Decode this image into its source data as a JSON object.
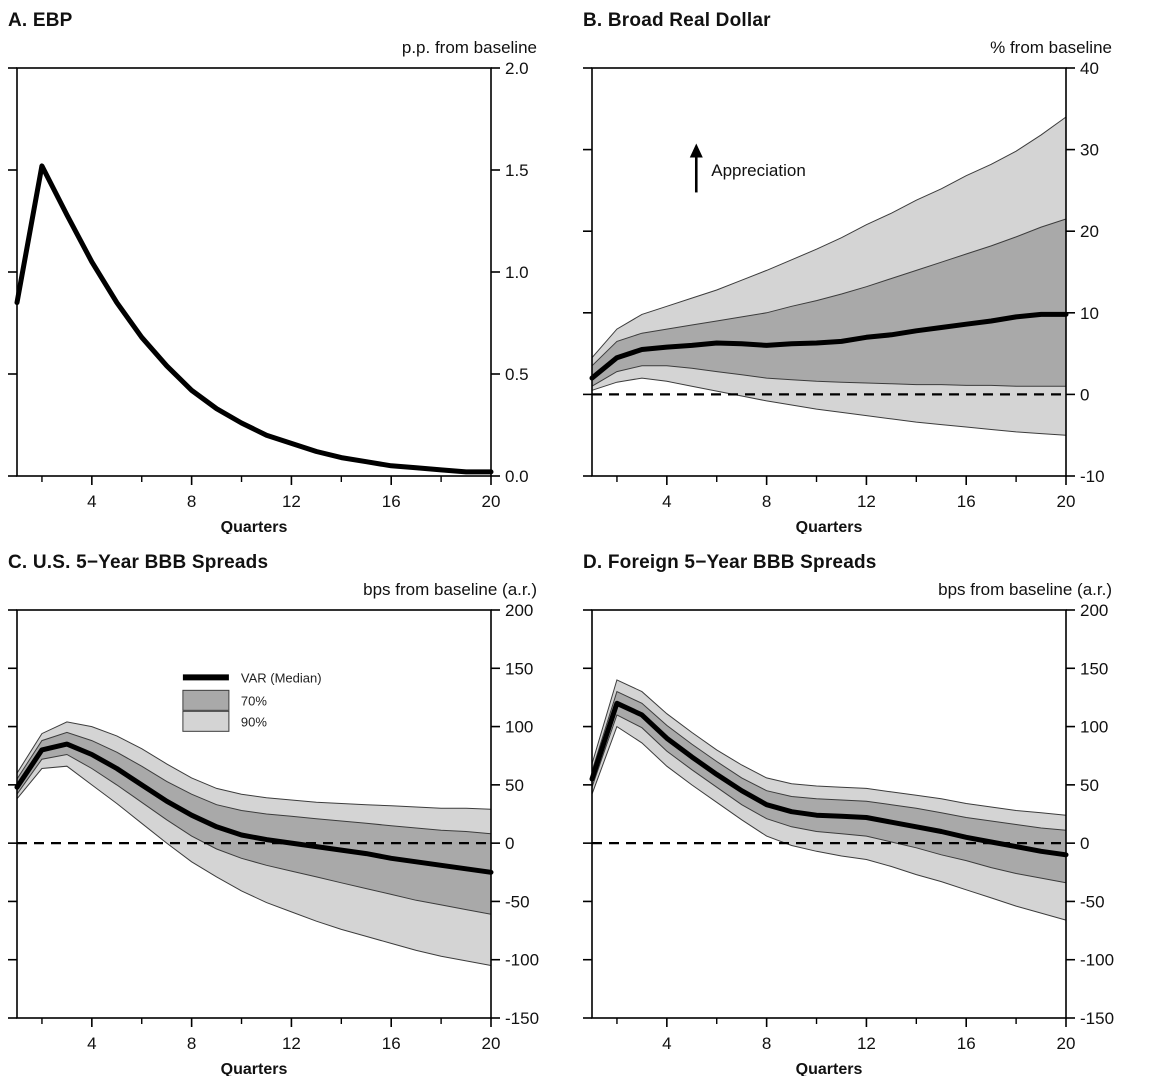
{
  "colors": {
    "median": "#000000",
    "band70": "#a9a9a9",
    "band90": "#d4d4d4",
    "frame": "#000000"
  },
  "chart_data": [
    {
      "id": "A",
      "type": "line",
      "title": "A. EBP",
      "unit_label": "p.p. from baseline",
      "xlabel": "Quarters",
      "x": [
        1,
        2,
        3,
        4,
        5,
        6,
        7,
        8,
        9,
        10,
        11,
        12,
        13,
        14,
        15,
        16,
        17,
        18,
        19,
        20
      ],
      "median": [
        0.85,
        1.52,
        1.28,
        1.05,
        0.85,
        0.68,
        0.54,
        0.42,
        0.33,
        0.26,
        0.2,
        0.16,
        0.12,
        0.09,
        0.07,
        0.05,
        0.04,
        0.03,
        0.02,
        0.02
      ],
      "ylim": [
        0,
        2
      ],
      "ytick_values": [
        0,
        0.5,
        1,
        1.5,
        2
      ],
      "ytick_labels": [
        "0.0",
        "0.5",
        "1.0",
        "1.5",
        "2.0"
      ],
      "xticks": {
        "major": [
          4,
          8,
          12,
          16,
          20
        ],
        "labels": [
          "4",
          "8",
          "12",
          "16",
          "20"
        ],
        "minor": [
          2,
          6,
          10,
          14,
          18
        ]
      },
      "zero_line": false,
      "colors": {
        "median": "#000000",
        "band70": "#a9a9a9",
        "band90": "#d4d4d4"
      }
    },
    {
      "id": "B",
      "type": "area",
      "title": "B. Broad Real Dollar",
      "unit_label": "% from baseline",
      "xlabel": "Quarters",
      "x": [
        1,
        2,
        3,
        4,
        5,
        6,
        7,
        8,
        9,
        10,
        11,
        12,
        13,
        14,
        15,
        16,
        17,
        18,
        19,
        20
      ],
      "median": [
        2.0,
        4.5,
        5.5,
        5.8,
        6.0,
        6.3,
        6.2,
        6.0,
        6.2,
        6.3,
        6.5,
        7.0,
        7.3,
        7.8,
        8.2,
        8.6,
        9.0,
        9.5,
        9.8,
        9.8
      ],
      "band70": {
        "upper": [
          3.5,
          6.5,
          7.5,
          8.0,
          8.5,
          9.0,
          9.5,
          10.0,
          10.8,
          11.5,
          12.3,
          13.2,
          14.2,
          15.2,
          16.2,
          17.2,
          18.2,
          19.3,
          20.5,
          21.5
        ],
        "lower": [
          1.0,
          2.8,
          3.5,
          3.5,
          3.2,
          2.8,
          2.4,
          2.0,
          1.8,
          1.6,
          1.5,
          1.4,
          1.3,
          1.2,
          1.2,
          1.1,
          1.1,
          1.0,
          1.0,
          1.0
        ]
      },
      "band90": {
        "upper": [
          4.5,
          8.0,
          9.8,
          10.8,
          11.8,
          12.8,
          14.0,
          15.2,
          16.5,
          17.8,
          19.2,
          20.8,
          22.2,
          23.8,
          25.2,
          26.8,
          28.2,
          29.8,
          31.8,
          34.0
        ],
        "lower": [
          0.5,
          1.5,
          2.0,
          1.6,
          1.0,
          0.4,
          -0.2,
          -0.8,
          -1.3,
          -1.8,
          -2.2,
          -2.6,
          -3.0,
          -3.4,
          -3.7,
          -4.0,
          -4.3,
          -4.6,
          -4.8,
          -5.0
        ]
      },
      "ylim": [
        -10,
        40
      ],
      "ytick_values": [
        -10,
        0,
        10,
        20,
        30,
        40
      ],
      "ytick_labels": [
        "-10",
        "0",
        "10",
        "20",
        "30",
        "40"
      ],
      "xticks": {
        "major": [
          4,
          8,
          12,
          16,
          20
        ],
        "labels": [
          "4",
          "8",
          "12",
          "16",
          "20"
        ],
        "minor": [
          2,
          6,
          10,
          14,
          18
        ]
      },
      "zero_line": true,
      "annotation": {
        "text": "Appreciation"
      },
      "colors": {
        "median": "#000000",
        "band70": "#a9a9a9",
        "band90": "#d4d4d4"
      }
    },
    {
      "id": "C",
      "type": "area",
      "title": "C. U.S. 5−Year BBB Spreads",
      "unit_label": "bps from baseline (a.r.)",
      "xlabel": "Quarters",
      "x": [
        1,
        2,
        3,
        4,
        5,
        6,
        7,
        8,
        9,
        10,
        11,
        12,
        13,
        14,
        15,
        16,
        17,
        18,
        19,
        20
      ],
      "median": [
        48,
        80,
        85,
        76,
        64,
        50,
        36,
        24,
        14,
        7,
        3,
        0,
        -3,
        -6,
        -9,
        -13,
        -16,
        -19,
        -22,
        -25
      ],
      "band70": {
        "upper": [
          55,
          88,
          95,
          88,
          78,
          66,
          53,
          42,
          33,
          28,
          25,
          23,
          21,
          19,
          17,
          15,
          13,
          11,
          10,
          8
        ],
        "lower": [
          42,
          72,
          76,
          64,
          50,
          35,
          20,
          6,
          -5,
          -13,
          -19,
          -24,
          -29,
          -34,
          -39,
          -44,
          -49,
          -53,
          -57,
          -61
        ]
      },
      "band90": {
        "upper": [
          60,
          94,
          104,
          100,
          92,
          81,
          68,
          56,
          47,
          42,
          39,
          37,
          35,
          34,
          33,
          32,
          31,
          30,
          30,
          29
        ],
        "lower": [
          38,
          64,
          66,
          50,
          34,
          17,
          0,
          -16,
          -29,
          -41,
          -51,
          -59,
          -67,
          -74,
          -80,
          -86,
          -92,
          -97,
          -101,
          -105
        ]
      },
      "ylim": [
        -150,
        200
      ],
      "ytick_values": [
        -150,
        -100,
        -50,
        0,
        50,
        100,
        150,
        200
      ],
      "ytick_labels": [
        "-150",
        "-100",
        "-50",
        "0",
        "50",
        "100",
        "150",
        "200"
      ],
      "xticks": {
        "major": [
          4,
          8,
          12,
          16,
          20
        ],
        "labels": [
          "4",
          "8",
          "12",
          "16",
          "20"
        ],
        "minor": [
          2,
          6,
          10,
          14,
          18
        ]
      },
      "zero_line": true,
      "legend": {
        "items": [
          {
            "type": "line",
            "label": "VAR (Median)"
          },
          {
            "type": "band70",
            "label": "70%"
          },
          {
            "type": "band90",
            "label": "90%"
          }
        ]
      },
      "colors": {
        "median": "#000000",
        "band70": "#a9a9a9",
        "band90": "#d4d4d4"
      }
    },
    {
      "id": "D",
      "type": "area",
      "title": "D. Foreign 5−Year BBB Spreads",
      "unit_label": "bps from baseline (a.r.)",
      "xlabel": "Quarters",
      "x": [
        1,
        2,
        3,
        4,
        5,
        6,
        7,
        8,
        9,
        10,
        11,
        12,
        13,
        14,
        15,
        16,
        17,
        18,
        19,
        20
      ],
      "median": [
        55,
        120,
        110,
        90,
        74,
        59,
        45,
        33,
        27,
        24,
        23,
        22,
        18,
        14,
        10,
        5,
        1,
        -3,
        -7,
        -10
      ],
      "band70": {
        "upper": [
          62,
          130,
          120,
          101,
          85,
          70,
          56,
          45,
          40,
          38,
          37,
          36,
          33,
          30,
          26,
          22,
          19,
          16,
          13,
          11
        ],
        "lower": [
          48,
          110,
          99,
          79,
          63,
          48,
          33,
          21,
          14,
          10,
          8,
          6,
          1,
          -4,
          -10,
          -15,
          -21,
          -26,
          -30,
          -34
        ]
      },
      "band90": {
        "upper": [
          68,
          140,
          130,
          111,
          95,
          80,
          67,
          56,
          51,
          49,
          48,
          47,
          44,
          41,
          38,
          34,
          31,
          28,
          26,
          24
        ],
        "lower": [
          42,
          100,
          86,
          66,
          50,
          35,
          20,
          6,
          -2,
          -7,
          -11,
          -14,
          -20,
          -27,
          -33,
          -40,
          -47,
          -54,
          -60,
          -66
        ]
      },
      "ylim": [
        -150,
        200
      ],
      "ytick_values": [
        -150,
        -100,
        -50,
        0,
        50,
        100,
        150,
        200
      ],
      "ytick_labels": [
        "-150",
        "-100",
        "-50",
        "0",
        "50",
        "100",
        "150",
        "200"
      ],
      "xticks": {
        "major": [
          4,
          8,
          12,
          16,
          20
        ],
        "labels": [
          "4",
          "8",
          "12",
          "16",
          "20"
        ],
        "minor": [
          2,
          6,
          10,
          14,
          18
        ]
      },
      "zero_line": true,
      "colors": {
        "median": "#000000",
        "band70": "#a9a9a9",
        "band90": "#d4d4d4"
      }
    }
  ]
}
